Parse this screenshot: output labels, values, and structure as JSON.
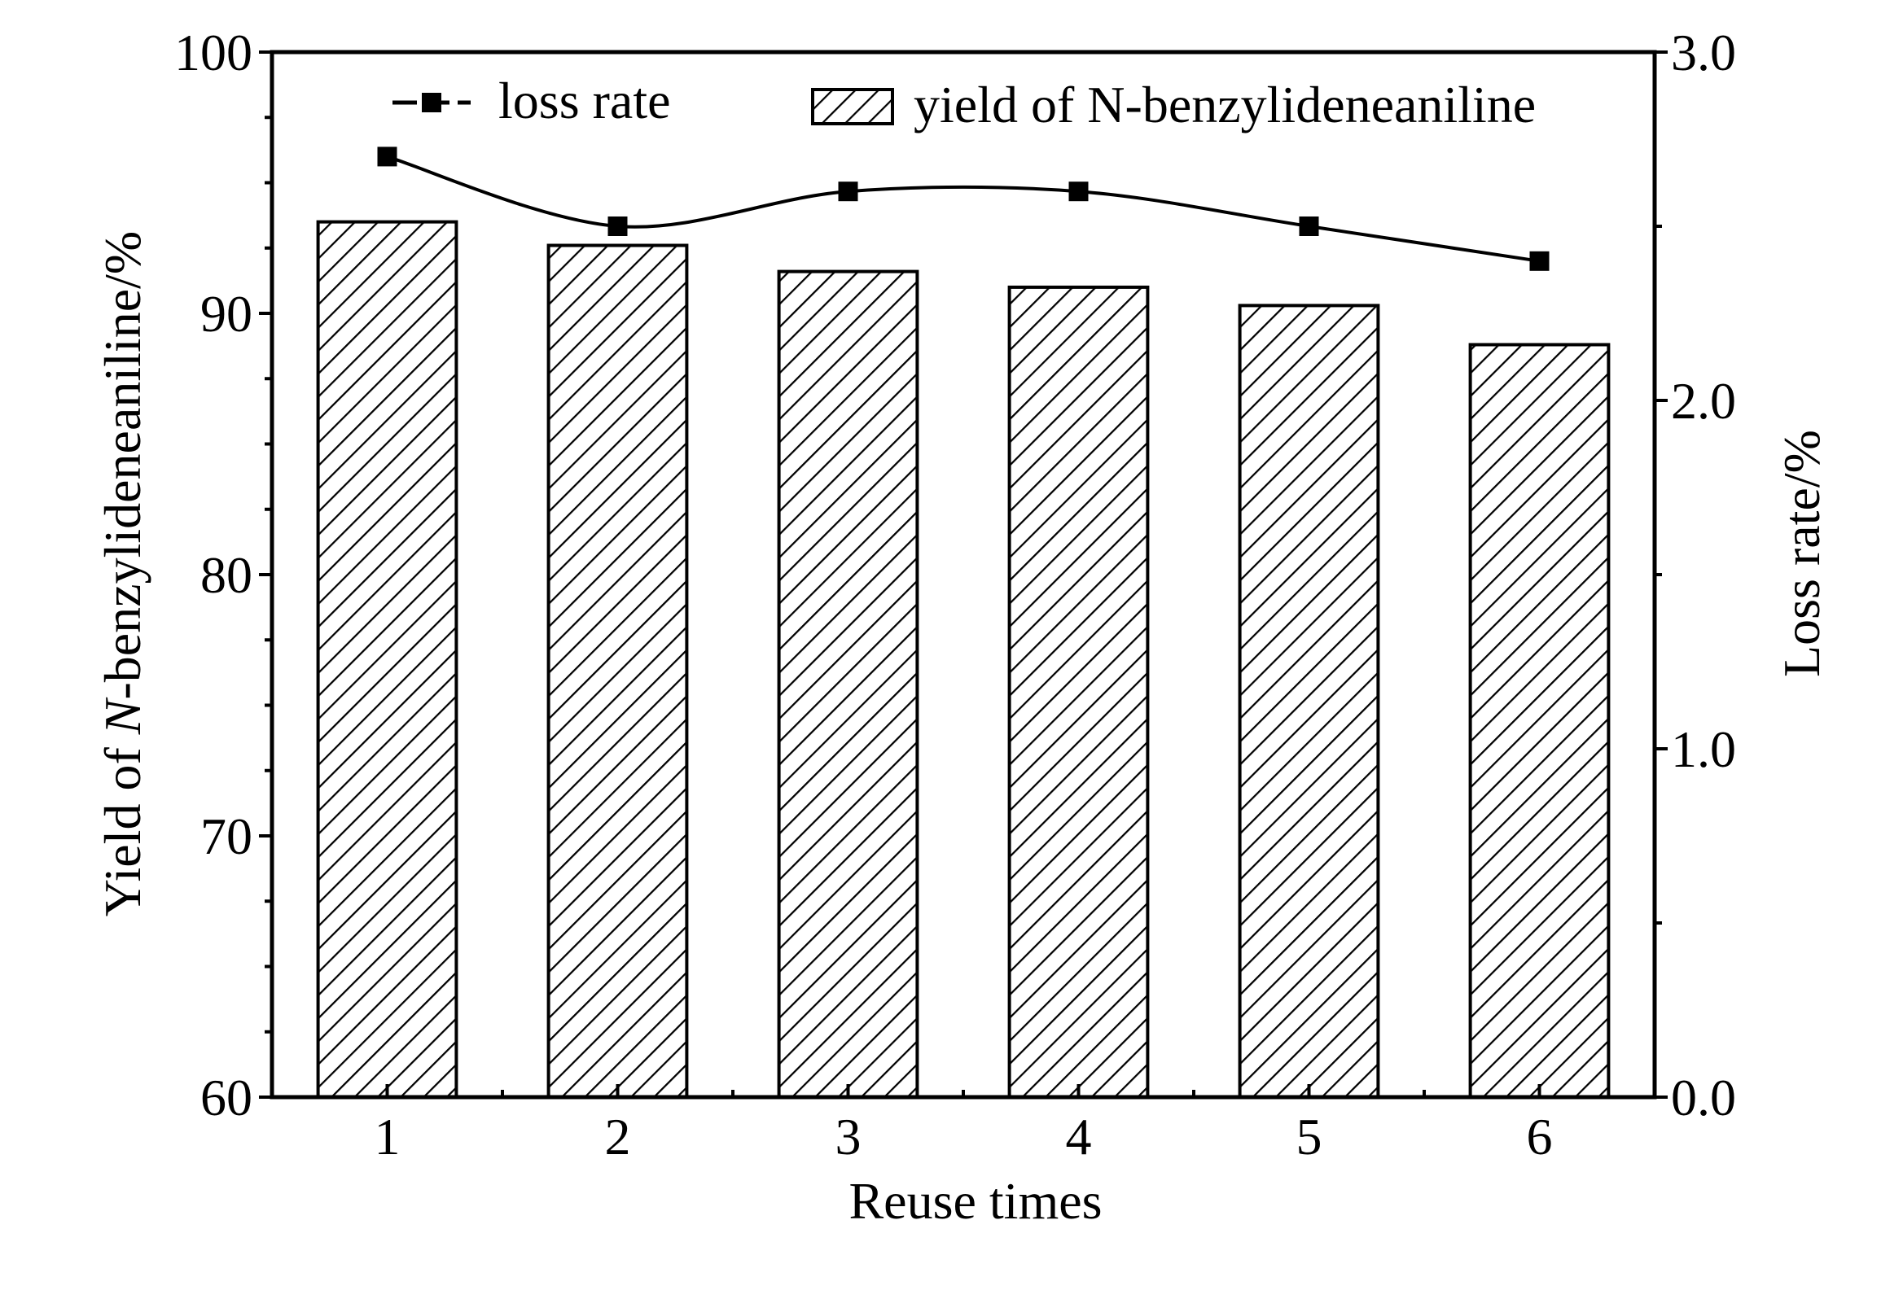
{
  "chart_data": {
    "type": "bar",
    "title": "",
    "xlabel": "Reuse times",
    "ylabel": {
      "before": "Yield of ",
      "italic": "N",
      "after": "-benzylideneaniline/%"
    },
    "y2label": "Loss rate/%",
    "categories": [
      "1",
      "2",
      "3",
      "4",
      "5",
      "6"
    ],
    "ylim": [
      60,
      100
    ],
    "y2lim": [
      0.0,
      3.0
    ],
    "yticks": [
      "60",
      "70",
      "80",
      "90",
      "100"
    ],
    "y2ticks": [
      "0.0",
      "1.0",
      "2.0",
      "3.0"
    ],
    "grid": false,
    "legend_position": "top",
    "series": [
      {
        "name": "yield of N-benzylideneaniline",
        "kind": "bar",
        "axis": "left",
        "pattern": "diagonal-hatch",
        "values": [
          93.5,
          92.6,
          91.6,
          91.0,
          90.3,
          88.8
        ]
      },
      {
        "name": "loss rate",
        "kind": "line",
        "axis": "right",
        "marker": "square",
        "smooth": true,
        "values": [
          2.7,
          2.5,
          2.6,
          2.6,
          2.5,
          2.4
        ]
      }
    ],
    "colors": {
      "stroke": "#000000",
      "background": "#ffffff"
    }
  }
}
